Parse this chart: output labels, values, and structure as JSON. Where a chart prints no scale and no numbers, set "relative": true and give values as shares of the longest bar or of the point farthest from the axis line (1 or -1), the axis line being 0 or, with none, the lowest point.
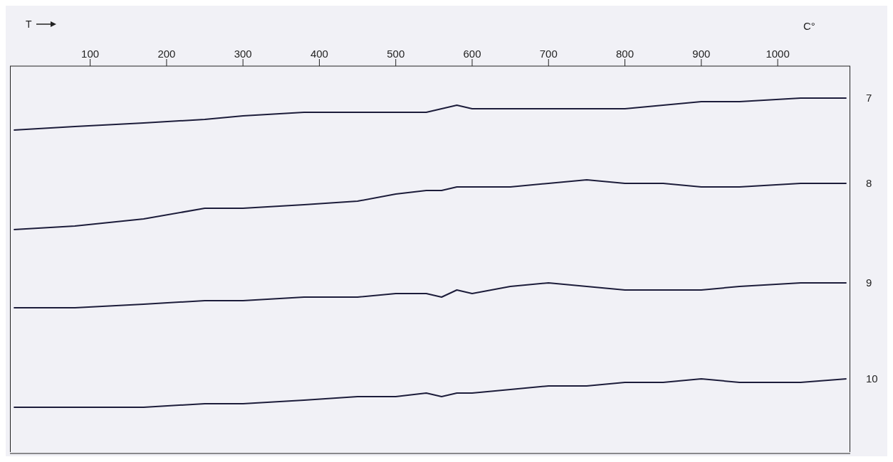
{
  "chart_data": {
    "type": "line",
    "relative": true,
    "xlabel": "T",
    "annotations": [
      "C°"
    ],
    "x": [
      0,
      80,
      170,
      250,
      300,
      380,
      450,
      500,
      540,
      560,
      580,
      600,
      650,
      700,
      750,
      800,
      850,
      900,
      950,
      1030,
      1090
    ],
    "xlim": [
      -5,
      1095
    ],
    "xticks": [
      100,
      200,
      300,
      400,
      500,
      600,
      700,
      800,
      900,
      1000
    ],
    "grid": false,
    "legend": false,
    "marker": "none",
    "line_style": "solid",
    "series": [
      {
        "name": "7",
        "color": "#1c1c3a",
        "values": [
          0.91,
          0.92,
          0.93,
          0.94,
          0.95,
          0.96,
          0.96,
          0.96,
          0.96,
          0.97,
          0.98,
          0.97,
          0.97,
          0.97,
          0.97,
          0.97,
          0.98,
          0.99,
          0.99,
          1.0,
          1.0
        ]
      },
      {
        "name": "8",
        "color": "#1c1c3a",
        "values": [
          0.63,
          0.64,
          0.66,
          0.69,
          0.69,
          0.7,
          0.71,
          0.73,
          0.74,
          0.74,
          0.75,
          0.75,
          0.75,
          0.76,
          0.77,
          0.76,
          0.76,
          0.75,
          0.75,
          0.76,
          0.76
        ]
      },
      {
        "name": "9",
        "color": "#1c1c3a",
        "values": [
          0.41,
          0.41,
          0.42,
          0.43,
          0.43,
          0.44,
          0.44,
          0.45,
          0.45,
          0.44,
          0.46,
          0.45,
          0.47,
          0.48,
          0.47,
          0.46,
          0.46,
          0.46,
          0.47,
          0.48,
          0.48
        ]
      },
      {
        "name": "10",
        "color": "#1c1c3a",
        "values": [
          0.13,
          0.13,
          0.13,
          0.14,
          0.14,
          0.15,
          0.16,
          0.16,
          0.17,
          0.16,
          0.17,
          0.17,
          0.18,
          0.19,
          0.19,
          0.2,
          0.2,
          0.21,
          0.2,
          0.2,
          0.21
        ]
      }
    ]
  }
}
